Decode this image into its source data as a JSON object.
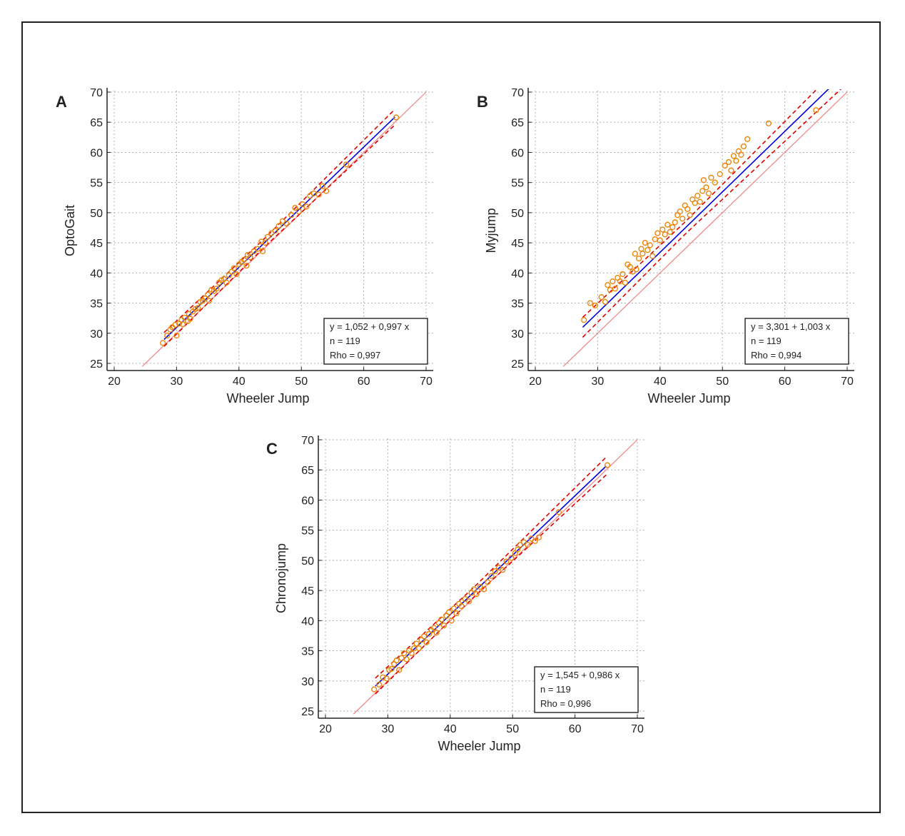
{
  "chart_data": [
    {
      "type": "scatter",
      "panel_label": "A",
      "title": "",
      "xlabel": "Wheeler Jump",
      "ylabel": "OptoGait",
      "xlim": [
        20,
        70
      ],
      "ylim": [
        25,
        70
      ],
      "xticks": [
        20,
        30,
        40,
        50,
        60,
        70
      ],
      "yticks": [
        25,
        30,
        35,
        40,
        45,
        50,
        55,
        60,
        65,
        70
      ],
      "grid": true,
      "colors": {
        "points": "#e8860c",
        "fit": "#0000dd",
        "ci": "#dd0000",
        "identity": "#f08080"
      },
      "stats": [
        "y  = 1,052 + 0,997 x",
        "n = 119",
        "Rho = 0,997"
      ],
      "fit": {
        "intercept": 1.052,
        "slope": 0.997,
        "x_range": [
          28,
          65
        ],
        "ci_halfwidth": 0.7
      },
      "identity_line": {
        "x_range": [
          24.5,
          70
        ]
      },
      "points": [
        [
          27.8,
          28.4
        ],
        [
          28.5,
          29.6
        ],
        [
          29,
          30.6
        ],
        [
          29.3,
          31
        ],
        [
          29.8,
          31.4
        ],
        [
          30,
          29.6
        ],
        [
          30.4,
          31.6
        ],
        [
          30.8,
          32.2
        ],
        [
          31,
          31.5
        ],
        [
          31.3,
          32.6
        ],
        [
          31.8,
          32
        ],
        [
          32,
          33.2
        ],
        [
          32.2,
          32.4
        ],
        [
          32.6,
          33.6
        ],
        [
          33,
          34
        ],
        [
          33.4,
          34.2
        ],
        [
          33.8,
          35.2
        ],
        [
          34.2,
          35.4
        ],
        [
          34.6,
          35.8
        ],
        [
          35,
          36.4
        ],
        [
          35.2,
          35.4
        ],
        [
          35.6,
          37.2
        ],
        [
          36,
          37
        ],
        [
          36.4,
          37.4
        ],
        [
          36.8,
          38.4
        ],
        [
          37.2,
          38.8
        ],
        [
          37.6,
          39
        ],
        [
          38,
          38.4
        ],
        [
          38.4,
          39.6
        ],
        [
          38.8,
          40.2
        ],
        [
          39.2,
          40.8
        ],
        [
          39.6,
          39.8
        ],
        [
          40,
          41.4
        ],
        [
          40.4,
          41.8
        ],
        [
          40.8,
          42.2
        ],
        [
          41.2,
          41.2
        ],
        [
          41.4,
          43
        ],
        [
          41.8,
          42.6
        ],
        [
          42.4,
          43.6
        ],
        [
          43,
          44
        ],
        [
          43.6,
          45.2
        ],
        [
          43.8,
          43.6
        ],
        [
          44.2,
          45
        ],
        [
          44.6,
          46
        ],
        [
          45.2,
          46.6
        ],
        [
          45.8,
          47
        ],
        [
          46.4,
          47.8
        ],
        [
          47,
          48.6
        ],
        [
          47.6,
          48.2
        ],
        [
          48.4,
          49.6
        ],
        [
          49,
          50.8
        ],
        [
          49.6,
          50.2
        ],
        [
          50.2,
          51.4
        ],
        [
          50.8,
          51
        ],
        [
          51.4,
          52.8
        ],
        [
          52,
          53.2
        ],
        [
          52.8,
          53
        ],
        [
          53.4,
          54.4
        ],
        [
          54,
          53.6
        ],
        [
          57.2,
          58
        ],
        [
          65.2,
          65.8
        ]
      ]
    },
    {
      "type": "scatter",
      "panel_label": "B",
      "title": "",
      "xlabel": "Wheeler Jump",
      "ylabel": "Myjump",
      "xlim": [
        20,
        70
      ],
      "ylim": [
        25,
        70
      ],
      "xticks": [
        20,
        30,
        40,
        50,
        60,
        70
      ],
      "yticks": [
        25,
        30,
        35,
        40,
        45,
        50,
        55,
        60,
        65,
        70
      ],
      "grid": true,
      "colors": {
        "points": "#e8860c",
        "fit": "#0000dd",
        "ci": "#dd0000",
        "identity": "#f08080"
      },
      "stats": [
        "y  = 3,301 + 1,003 x",
        "n = 119",
        "Rho = 0,994"
      ],
      "fit": {
        "intercept": 3.301,
        "slope": 1.003,
        "x_range": [
          27.6,
          70
        ],
        "ci_halfwidth": 1.0
      },
      "identity_line": {
        "x_range": [
          24.5,
          70
        ]
      },
      "points": [
        [
          27.8,
          32.2
        ],
        [
          28.8,
          35
        ],
        [
          29.6,
          34.6
        ],
        [
          30.6,
          36
        ],
        [
          31.2,
          35.2
        ],
        [
          31.6,
          38
        ],
        [
          32,
          37.2
        ],
        [
          32.4,
          38.6
        ],
        [
          32.8,
          37.4
        ],
        [
          33.2,
          39.2
        ],
        [
          33.6,
          38.6
        ],
        [
          34,
          39.8
        ],
        [
          34.4,
          38.4
        ],
        [
          34.8,
          41.4
        ],
        [
          35.2,
          41
        ],
        [
          35.6,
          40.2
        ],
        [
          36,
          43.2
        ],
        [
          36.2,
          40.6
        ],
        [
          36.6,
          42.4
        ],
        [
          37,
          44
        ],
        [
          37.2,
          43.2
        ],
        [
          37.6,
          45
        ],
        [
          38,
          43.8
        ],
        [
          38.4,
          44.6
        ],
        [
          38.8,
          42.8
        ],
        [
          39.2,
          45.6
        ],
        [
          39.6,
          46.6
        ],
        [
          40,
          45.4
        ],
        [
          40.4,
          47.2
        ],
        [
          40.8,
          46.4
        ],
        [
          41.2,
          48
        ],
        [
          41.6,
          46.8
        ],
        [
          42,
          47.6
        ],
        [
          42.4,
          48.4
        ],
        [
          42.8,
          49.6
        ],
        [
          43.2,
          50.2
        ],
        [
          43.6,
          49
        ],
        [
          44,
          51.2
        ],
        [
          44.4,
          50.6
        ],
        [
          44.8,
          49.6
        ],
        [
          45.2,
          52.2
        ],
        [
          45.6,
          51.6
        ],
        [
          46,
          52.8
        ],
        [
          46.4,
          51.8
        ],
        [
          46.8,
          53.6
        ],
        [
          47,
          55.4
        ],
        [
          47.4,
          54.2
        ],
        [
          47.8,
          53.2
        ],
        [
          48.2,
          55.8
        ],
        [
          48.8,
          55
        ],
        [
          49.6,
          56.4
        ],
        [
          50.4,
          57.8
        ],
        [
          51,
          58.4
        ],
        [
          51.4,
          57
        ],
        [
          51.8,
          59.4
        ],
        [
          52.2,
          58.6
        ],
        [
          52.6,
          60.2
        ],
        [
          53,
          59.6
        ],
        [
          53.4,
          61
        ],
        [
          54,
          62.2
        ],
        [
          57.4,
          64.8
        ],
        [
          65,
          67
        ]
      ]
    },
    {
      "type": "scatter",
      "panel_label": "C",
      "title": "",
      "xlabel": "Wheeler Jump",
      "ylabel": "Chronojump",
      "xlim": [
        20,
        70
      ],
      "ylim": [
        25,
        70
      ],
      "xticks": [
        20,
        30,
        40,
        50,
        60,
        70
      ],
      "yticks": [
        25,
        30,
        35,
        40,
        45,
        50,
        55,
        60,
        65,
        70
      ],
      "grid": true,
      "colors": {
        "points": "#e8860c",
        "fit": "#0000dd",
        "ci": "#dd0000",
        "identity": "#f08080"
      },
      "stats": [
        "y  = 1,545 + 0,986 x",
        "n = 119",
        "Rho = 0,996"
      ],
      "fit": {
        "intercept": 1.545,
        "slope": 0.986,
        "x_range": [
          28,
          65
        ],
        "ci_halfwidth": 0.8
      },
      "identity_line": {
        "x_range": [
          24.5,
          70
        ]
      },
      "points": [
        [
          27.8,
          28.6
        ],
        [
          28.6,
          29.4
        ],
        [
          29.2,
          30.6
        ],
        [
          29.8,
          30.4
        ],
        [
          30.2,
          31.8
        ],
        [
          30.6,
          32
        ],
        [
          31,
          32.8
        ],
        [
          31.4,
          33.4
        ],
        [
          31.8,
          31.8
        ],
        [
          32.2,
          33.8
        ],
        [
          32.6,
          34.6
        ],
        [
          33,
          33.6
        ],
        [
          33.4,
          35
        ],
        [
          33.8,
          34.6
        ],
        [
          34.2,
          35.4
        ],
        [
          34.6,
          36.2
        ],
        [
          35,
          35.4
        ],
        [
          35.4,
          36.8
        ],
        [
          35.8,
          37.4
        ],
        [
          36.2,
          36.4
        ],
        [
          36.6,
          37.8
        ],
        [
          37,
          38.4
        ],
        [
          37.4,
          38.8
        ],
        [
          37.8,
          38
        ],
        [
          38.2,
          39.6
        ],
        [
          38.6,
          40.2
        ],
        [
          39,
          39.2
        ],
        [
          39.4,
          40.8
        ],
        [
          39.8,
          41.4
        ],
        [
          40.2,
          40
        ],
        [
          40.6,
          42
        ],
        [
          41,
          41.2
        ],
        [
          41.4,
          42.8
        ],
        [
          41.8,
          42.4
        ],
        [
          42.4,
          43.6
        ],
        [
          43,
          43.2
        ],
        [
          43.4,
          44.6
        ],
        [
          43.8,
          45.2
        ],
        [
          44.2,
          44.4
        ],
        [
          44.8,
          45.6
        ],
        [
          45.4,
          45.2
        ],
        [
          46,
          46.4
        ],
        [
          46.6,
          47.4
        ],
        [
          47.2,
          48.2
        ],
        [
          47.8,
          48.8
        ],
        [
          48.4,
          48.4
        ],
        [
          49,
          49.8
        ],
        [
          49.8,
          50.4
        ],
        [
          50.4,
          51.2
        ],
        [
          50.8,
          51.8
        ],
        [
          51.2,
          52.6
        ],
        [
          51.8,
          53
        ],
        [
          52.4,
          52.6
        ],
        [
          53,
          53.6
        ],
        [
          53.6,
          53.2
        ],
        [
          54.2,
          53.8
        ],
        [
          57.4,
          58
        ],
        [
          65.2,
          65.8
        ]
      ]
    }
  ]
}
